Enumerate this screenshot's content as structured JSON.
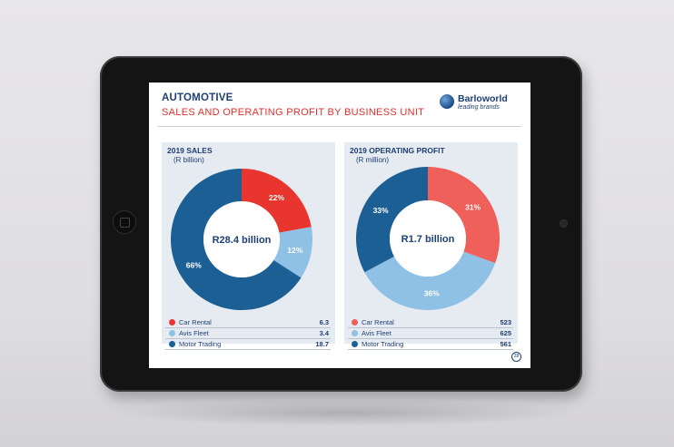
{
  "slide": {
    "title": "AUTOMOTIVE",
    "subtitle": "SALES AND OPERATING PROFIT BY BUSINESS UNIT",
    "logo_name": "Barloworld",
    "logo_tagline": "leading brands",
    "page_number": "28"
  },
  "colors": {
    "car_rental": "#e8352d",
    "car_rental_light": "#f0605a",
    "avis_fleet": "#8fc1e6",
    "motor_trading": "#1c5f95",
    "text_navy": "#1f3f73"
  },
  "chart_data": [
    {
      "type": "pie",
      "title": "2019 SALES",
      "subtitle": "(R billion)",
      "center_label": "R28.4 billion",
      "categories": [
        "Car Rental",
        "Avis Fleet",
        "Motor Trading"
      ],
      "values": [
        6.3,
        3.4,
        18.7
      ],
      "value_labels": [
        "6.3",
        "3.4",
        "18.7"
      ],
      "percent_labels": [
        "22%",
        "12%",
        "66%"
      ],
      "legend": "bottom"
    },
    {
      "type": "pie",
      "title": "2019 OPERATING PROFIT",
      "subtitle": "(R million)",
      "center_label": "R1.7 billion",
      "categories": [
        "Car Rental",
        "Avis Fleet",
        "Motor Trading"
      ],
      "values": [
        523,
        625,
        561
      ],
      "value_labels": [
        "523",
        "625",
        "561"
      ],
      "percent_labels": [
        "31%",
        "36%",
        "33%"
      ],
      "legend": "bottom"
    }
  ]
}
